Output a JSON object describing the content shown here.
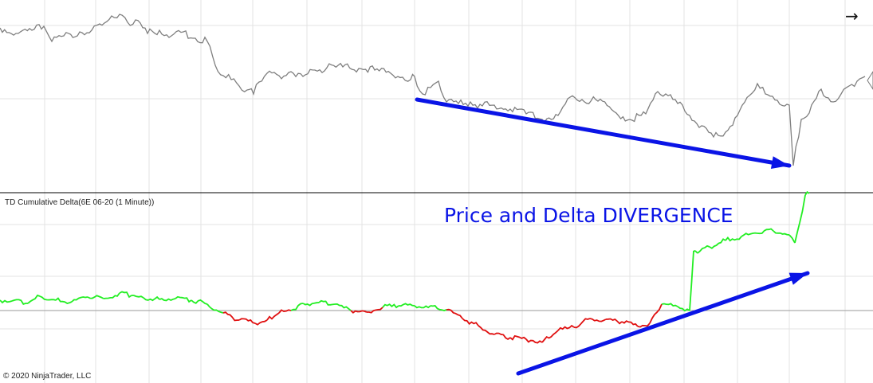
{
  "colors": {
    "price_line": "#7f7f7f",
    "delta_up": "#22ee22",
    "delta_down": "#e01010",
    "arrow": "#0a14e6",
    "grid": "#e3e3e3",
    "zero_line": "#9a9a9a",
    "separator": "#000000"
  },
  "nav": {
    "arrow_icon": "→"
  },
  "annotation": {
    "text": "Price and Delta DIVERGENCE"
  },
  "copyright": "© 2020 NinjaTrader, LLC",
  "chart_data": [
    {
      "type": "line",
      "name": "price-pane",
      "title": "",
      "x": [
        0,
        20,
        40,
        55,
        65,
        80,
        100,
        115,
        125,
        140,
        150,
        160,
        170,
        185,
        200,
        215,
        230,
        245,
        260,
        270,
        280,
        290,
        300,
        310,
        318,
        325,
        335,
        350,
        365,
        380,
        395,
        410,
        430,
        450,
        470,
        490,
        505,
        515,
        520,
        530,
        540,
        550,
        560,
        575,
        590,
        605,
        620,
        640,
        660,
        680,
        700,
        715,
        730,
        750,
        770,
        790,
        810,
        825,
        835,
        850,
        865,
        880,
        895,
        910,
        925,
        940,
        950,
        960,
        975,
        990,
        995,
        1005,
        1015,
        1030,
        1045,
        1055,
        1065,
        1075,
        1085
      ],
      "values": [
        35,
        42,
        38,
        33,
        52,
        45,
        40,
        38,
        30,
        20,
        18,
        28,
        25,
        42,
        38,
        45,
        40,
        48,
        52,
        82,
        95,
        100,
        108,
        113,
        118,
        103,
        92,
        95,
        90,
        96,
        88,
        85,
        84,
        86,
        88,
        92,
        97,
        100,
        96,
        118,
        110,
        102,
        128,
        130,
        128,
        133,
        132,
        137,
        143,
        150,
        145,
        122,
        125,
        127,
        140,
        150,
        143,
        115,
        118,
        130,
        145,
        158,
        172,
        166,
        145,
        120,
        105,
        118,
        126,
        132,
        208,
        150,
        142,
        112,
        128,
        118,
        108,
        102,
        96
      ]
    },
    {
      "type": "line",
      "name": "TD Cumulative Delta(6E 06-20 (1 Minute))",
      "title": "TD Cumulative Delta(6E 06-20 (1 Minute))",
      "x": [
        0,
        15,
        35,
        50,
        70,
        90,
        110,
        130,
        150,
        165,
        180,
        200,
        220,
        240,
        260,
        280,
        300,
        320,
        335,
        350,
        365,
        380,
        400,
        420,
        440,
        460,
        480,
        500,
        520,
        540,
        560,
        580,
        600,
        620,
        640,
        660,
        680,
        700,
        720,
        740,
        760,
        780,
        800,
        815,
        830,
        850,
        865,
        870,
        875,
        890,
        910,
        930,
        950,
        970,
        990,
        997,
        1003,
        1010,
        1015
      ],
      "values": [
        377,
        378,
        381,
        372,
        377,
        379,
        373,
        375,
        368,
        371,
        374,
        376,
        375,
        377,
        382,
        393,
        402,
        406,
        402,
        393,
        390,
        381,
        380,
        382,
        390,
        392,
        386,
        384,
        384,
        384,
        389,
        400,
        409,
        420,
        424,
        426,
        430,
        415,
        411,
        400,
        401,
        404,
        410,
        406,
        382,
        385,
        390,
        315,
        318,
        310,
        302,
        297,
        293,
        290,
        295,
        305,
        280,
        245,
        243
      ],
      "dir": [
        1,
        1,
        1,
        1,
        1,
        1,
        1,
        1,
        1,
        1,
        1,
        1,
        1,
        1,
        1,
        -1,
        -1,
        -1,
        -1,
        -1,
        1,
        1,
        1,
        1,
        -1,
        -1,
        1,
        1,
        1,
        1,
        -1,
        -1,
        -1,
        -1,
        -1,
        -1,
        -1,
        -1,
        -1,
        -1,
        -1,
        -1,
        -1,
        -1,
        1,
        1,
        1,
        1,
        1,
        1,
        1,
        1,
        1,
        1,
        1,
        1,
        1,
        1,
        1
      ]
    }
  ]
}
